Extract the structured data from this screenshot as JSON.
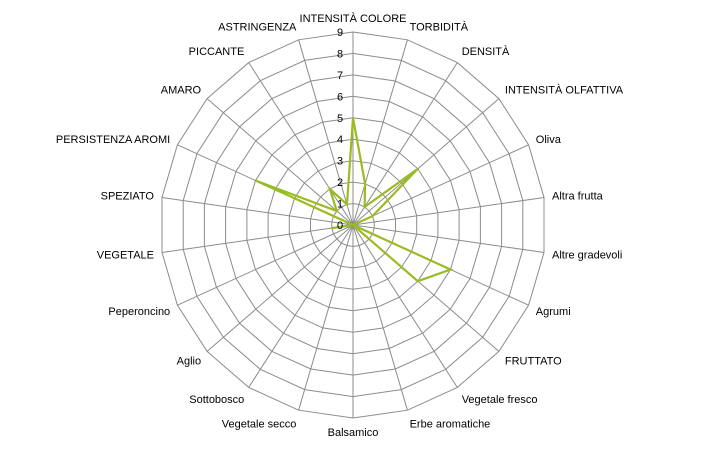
{
  "chart_data": {
    "type": "radar",
    "title": "",
    "categories": [
      "INTENSITÀ COLORE",
      "TORBIDITÀ",
      "DENSITÀ",
      "INTENSITÀ OLFATTIVA",
      "Oliva",
      "Altra frutta",
      "Altre gradevoli",
      "Agrumi",
      "FRUTTATO",
      "Vegetale fresco",
      "Erbe aromatiche",
      "Balsamico",
      "Vegetale secco",
      "Sottobosco",
      "Aglio",
      "Peperoncino",
      "VEGETALE",
      "SPEZIATO",
      "PERSISTENZA AROMI",
      "AMARO",
      "PICCANTE",
      "ASTRINGENZA"
    ],
    "series": [
      {
        "values": [
          5,
          2,
          1,
          4,
          1,
          0,
          0,
          5,
          4,
          0,
          0,
          0,
          0,
          0,
          0,
          0,
          1,
          0,
          5,
          1,
          2,
          1
        ]
      }
    ],
    "rlim": [
      0,
      9
    ],
    "ticks": [
      "0",
      "1",
      "2",
      "3",
      "4",
      "5",
      "6",
      "7",
      "8",
      "9"
    ],
    "grid": true,
    "legend": "none",
    "colors": {
      "series": "#9bbb22",
      "grid": "#8c8c8c",
      "text": "#000000"
    }
  }
}
